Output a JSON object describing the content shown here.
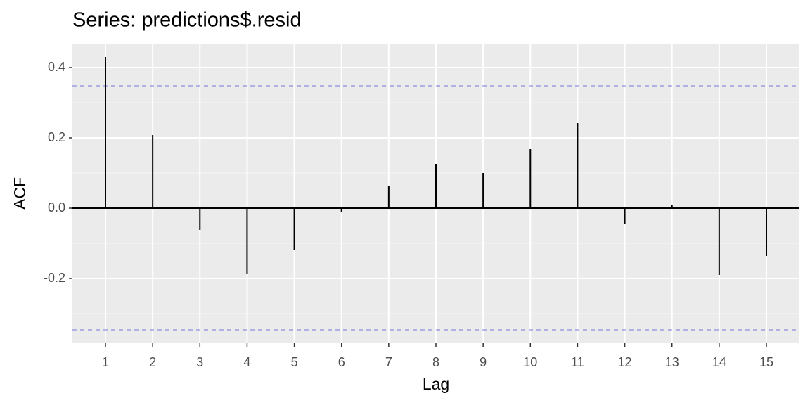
{
  "chart_data": {
    "type": "acf",
    "title": "Series: predictions$.resid",
    "x_label": "Lag",
    "y_label": "ACF",
    "x": [
      1,
      2,
      3,
      4,
      5,
      6,
      7,
      8,
      9,
      10,
      11,
      12,
      13,
      14,
      15
    ],
    "values": [
      0.43,
      0.208,
      -0.062,
      -0.186,
      -0.118,
      -0.012,
      0.064,
      0.126,
      0.1,
      0.168,
      0.242,
      -0.046,
      0.01,
      -0.19,
      -0.136
    ],
    "color": "#000000",
    "confidence_bounds": [
      0.347,
      -0.347
    ],
    "bound_color": "#0000cc",
    "xlim": [
      0.3,
      15.7
    ],
    "xticks": [
      1,
      2,
      3,
      4,
      5,
      6,
      7,
      8,
      9,
      10,
      11,
      12,
      13,
      14,
      15
    ],
    "ylim": [
      -0.384,
      0.468
    ],
    "yticks": [
      -0.2,
      {
        "value": 0,
        "label": "0.0"
      },
      0.2,
      0.4
    ],
    "grid": true
  }
}
